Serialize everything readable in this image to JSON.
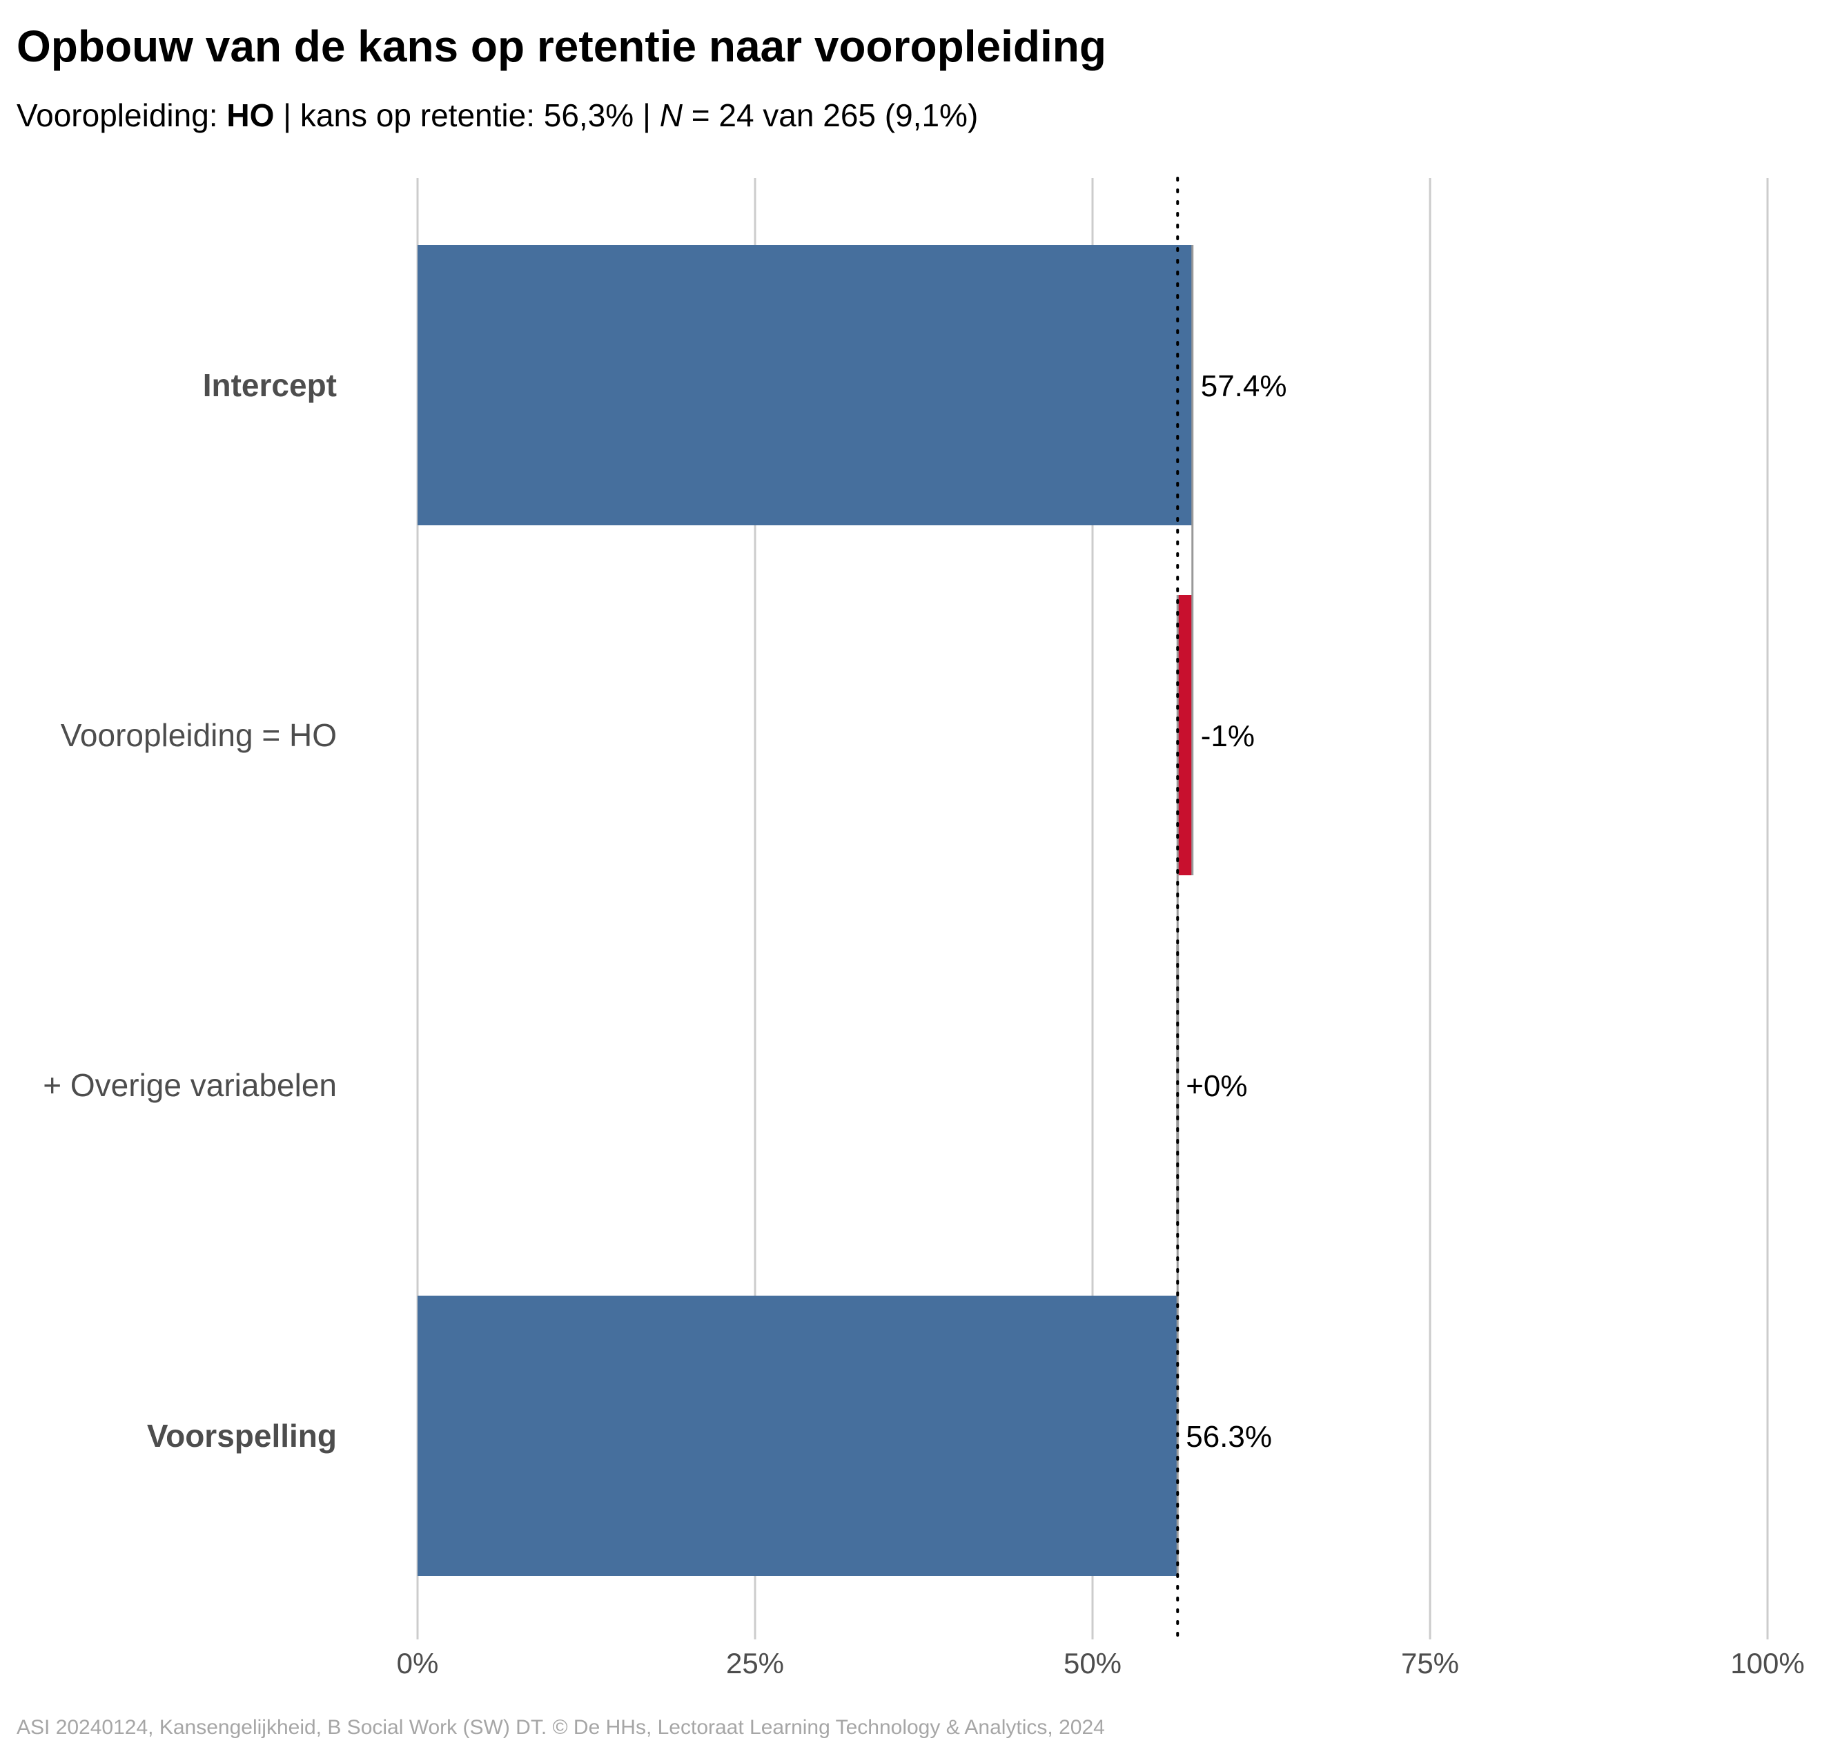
{
  "title": "Opbouw van de kans op retentie naar vooropleiding",
  "subtitle": {
    "prefix": "Vooropleiding: ",
    "group": "HO",
    "middle": " | kans op retentie: 56,3% | ",
    "n_symbol": "N",
    "n_text": " = 24 van 265 (9,1%)"
  },
  "caption": "ASI 20240124, Kansengelijkheid, B Social Work (SW) DT. © De HHs, Lectoraat Learning Technology & Analytics, 2024",
  "colors": {
    "base_bar": "#466f9d",
    "negative": "#c8102e",
    "grid": "#cccccc",
    "connector": "#999999",
    "reference": "#000000"
  },
  "chart_data": {
    "type": "bar",
    "orientation": "horizontal",
    "subtype": "waterfall",
    "categories": [
      "Intercept",
      "Vooropleiding = HO",
      "+ Overige variabelen",
      "Voorspelling"
    ],
    "bold_categories": [
      "Intercept",
      "Voorspelling"
    ],
    "bars": [
      {
        "label": "Intercept",
        "start": 0,
        "end": 57.4,
        "kind": "total",
        "value_label": "57.4%"
      },
      {
        "label": "Vooropleiding = HO",
        "start": 57.4,
        "end": 56.3,
        "kind": "negative",
        "value_label": "-1%"
      },
      {
        "label": "+ Overige variabelen",
        "start": 56.3,
        "end": 56.3,
        "kind": "zero",
        "value_label": "+0%"
      },
      {
        "label": "Voorspelling",
        "start": 0,
        "end": 56.3,
        "kind": "total",
        "value_label": "56.3%"
      }
    ],
    "reference_line": 56.3,
    "xlim": [
      0,
      100
    ],
    "xticks": [
      0,
      25,
      50,
      75,
      100
    ],
    "xtick_labels": [
      "0%",
      "25%",
      "50%",
      "75%",
      "100%"
    ],
    "grid": true
  }
}
